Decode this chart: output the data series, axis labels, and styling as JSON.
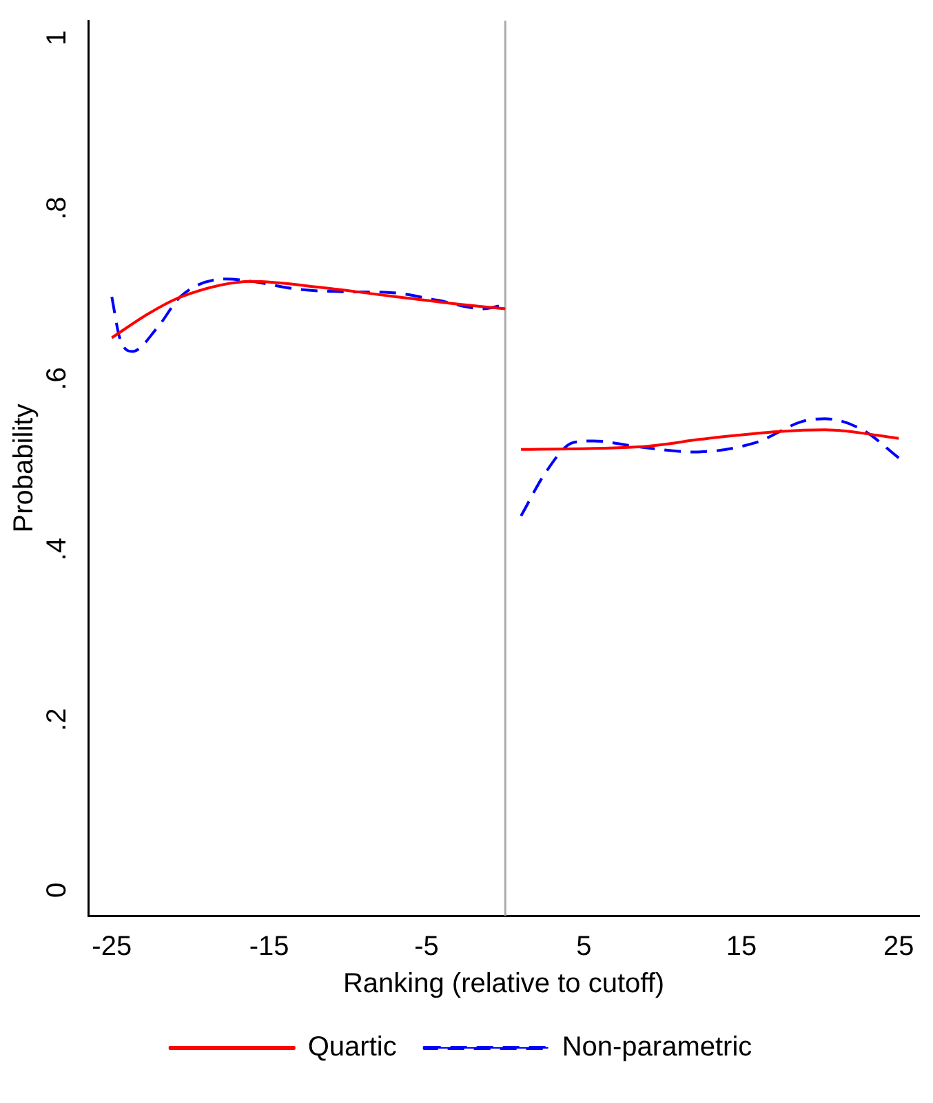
{
  "chart_data": {
    "type": "line",
    "xlabel": "Ranking (relative to cutoff)",
    "ylabel": "Probability",
    "xlim": [
      -26.5,
      26.3
    ],
    "xticks": [
      -25,
      -15,
      -5,
      5,
      15,
      25
    ],
    "ylim": [
      -0.03,
      1.02
    ],
    "yticks": [
      0,
      {
        "value": 0.2,
        "label": ".2"
      },
      {
        "value": 0.4,
        "label": ".4"
      },
      {
        "value": 0.6,
        "label": ".6"
      },
      {
        "value": 0.8,
        "label": ".8"
      },
      1
    ],
    "grid": false,
    "legend": "bottom",
    "marker": "none",
    "ref_lines": [
      {
        "axis": "x",
        "value": 0,
        "color": "#aaaaaa"
      }
    ],
    "series": [
      {
        "name": "Quartic",
        "color": "#ff0000",
        "line_style": "solid",
        "x": [
          -25,
          -22.7,
          -20.6,
          -16.1,
          -11.7,
          -7.3,
          -2.8,
          0,
          0.5,
          1,
          8.5,
          12.9,
          17.4,
          20.3,
          25
        ],
        "values": [
          0.648,
          0.676,
          0.696,
          0.714,
          0.707,
          0.697,
          0.687,
          0.682,
          null,
          0.517,
          0.52,
          0.53,
          0.538,
          0.54,
          0.53
        ]
      },
      {
        "name": "Non-parametric",
        "color": "#0000ff",
        "line_style": "dashed",
        "x": [
          -25,
          -24.5,
          -23.7,
          -22.1,
          -20.6,
          -17.7,
          -16.1,
          -13.2,
          -10.3,
          -7.3,
          -4.3,
          -1.4,
          0,
          0.5,
          1,
          2.6,
          4.3,
          5.6,
          8.5,
          12,
          15.9,
          18.9,
          20.3,
          22.7,
          25
        ],
        "values": [
          0.696,
          0.648,
          0.632,
          0.66,
          0.697,
          0.717,
          0.714,
          0.705,
          0.702,
          0.701,
          0.692,
          0.682,
          0.687,
          null,
          0.439,
          0.491,
          0.525,
          0.527,
          0.52,
          0.514,
          0.525,
          0.55,
          0.553,
          0.54,
          0.507
        ]
      }
    ]
  }
}
